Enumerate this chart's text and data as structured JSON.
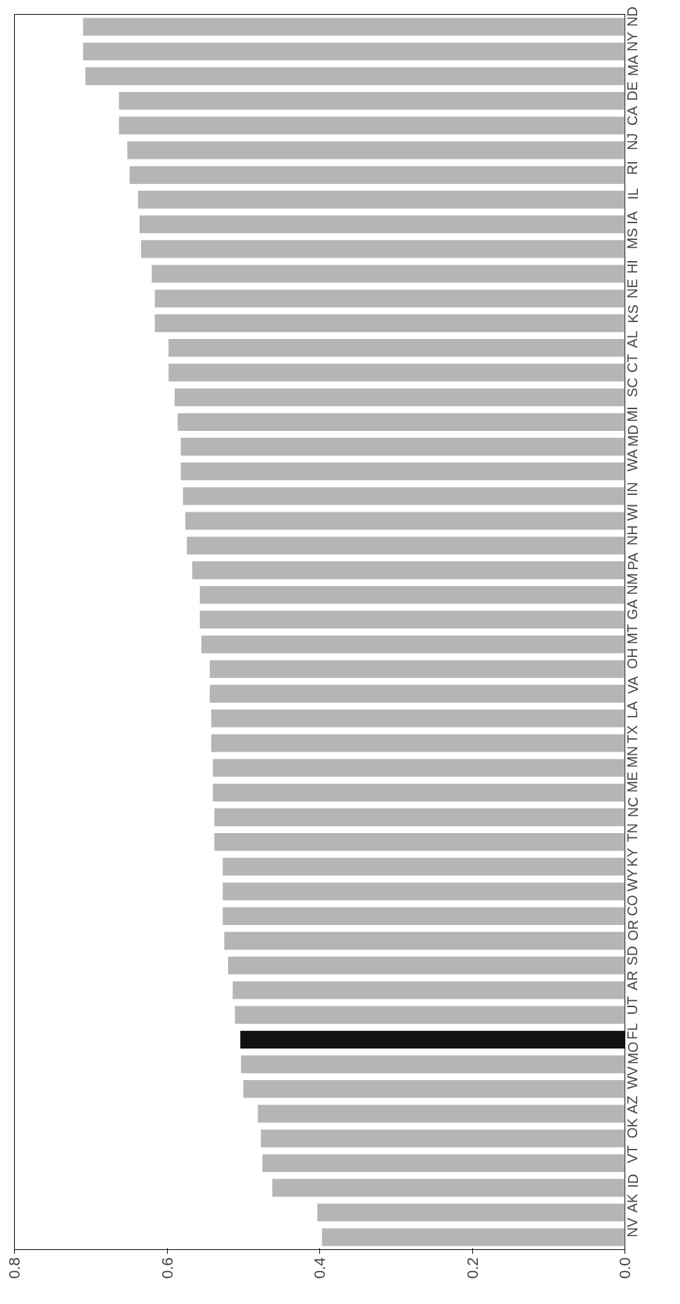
{
  "chart_data": {
    "type": "bar",
    "orientation": "horizontal",
    "categories": [
      "ND",
      "NY",
      "MA",
      "DE",
      "CA",
      "NJ",
      "RI",
      "IL",
      "IA",
      "MS",
      "HI",
      "NE",
      "KS",
      "AL",
      "CT",
      "SC",
      "MI",
      "MD",
      "WA",
      "IN",
      "WI",
      "NH",
      "PA",
      "NM",
      "GA",
      "MT",
      "OH",
      "VA",
      "LA",
      "TX",
      "MN",
      "ME",
      "NC",
      "TN",
      "KY",
      "WY",
      "CO",
      "OR",
      "SD",
      "AR",
      "UT",
      "FL",
      "MO",
      "WV",
      "AZ",
      "OK",
      "VT",
      "ID",
      "AK",
      "NV"
    ],
    "values": [
      0.71,
      0.71,
      0.707,
      0.663,
      0.663,
      0.652,
      0.649,
      0.638,
      0.636,
      0.634,
      0.62,
      0.616,
      0.616,
      0.598,
      0.598,
      0.59,
      0.586,
      0.582,
      0.582,
      0.579,
      0.576,
      0.574,
      0.567,
      0.557,
      0.557,
      0.555,
      0.544,
      0.544,
      0.542,
      0.542,
      0.54,
      0.54,
      0.538,
      0.538,
      0.527,
      0.527,
      0.527,
      0.525,
      0.52,
      0.514,
      0.511,
      0.504,
      0.503,
      0.5,
      0.481,
      0.477,
      0.475,
      0.462,
      0.403,
      0.397
    ],
    "colors": [
      "#b5b5b5",
      "#b5b5b5",
      "#b5b5b5",
      "#b5b5b5",
      "#b5b5b5",
      "#b5b5b5",
      "#b5b5b5",
      "#b5b5b5",
      "#b5b5b5",
      "#b5b5b5",
      "#b5b5b5",
      "#b5b5b5",
      "#b5b5b5",
      "#b5b5b5",
      "#b5b5b5",
      "#b5b5b5",
      "#b5b5b5",
      "#b5b5b5",
      "#b5b5b5",
      "#b5b5b5",
      "#b5b5b5",
      "#b5b5b5",
      "#b5b5b5",
      "#b5b5b5",
      "#b5b5b5",
      "#b5b5b5",
      "#b5b5b5",
      "#b5b5b5",
      "#b5b5b5",
      "#b5b5b5",
      "#b5b5b5",
      "#b5b5b5",
      "#b5b5b5",
      "#b5b5b5",
      "#b5b5b5",
      "#b5b5b5",
      "#b5b5b5",
      "#b5b5b5",
      "#b5b5b5",
      "#b5b5b5",
      "#b5b5b5",
      "#111111",
      "#b5b5b5",
      "#b5b5b5",
      "#b5b5b5",
      "#b5b5b5",
      "#b5b5b5",
      "#b5b5b5",
      "#b5b5b5",
      "#b5b5b5"
    ],
    "xlim": [
      0.8,
      0.0
    ],
    "xticks": [
      {
        "value": 0.0,
        "label": "0.0"
      },
      {
        "value": 0.2,
        "label": "0.2"
      },
      {
        "value": 0.4,
        "label": "0.4"
      },
      {
        "value": 0.6,
        "label": "0.6"
      },
      {
        "value": 0.8,
        "label": "0.8"
      }
    ],
    "grid": false
  }
}
